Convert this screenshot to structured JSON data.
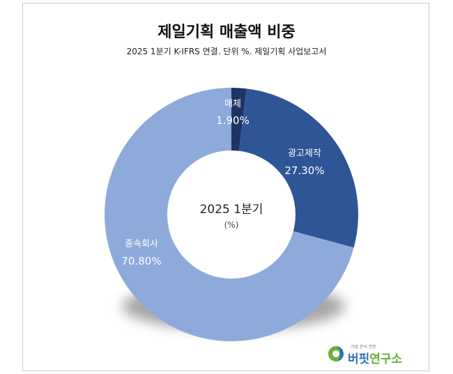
{
  "title": "제일기획 매출액 비중",
  "subtitle": "2025 1분기 K-IFRS 연결. 단위 %. 제일기획 사업보고서",
  "colors": {
    "slice_media": "#1e3463",
    "slice_adprod": "#2e5596",
    "slice_subsid": "#8eaadb",
    "label_dark_bg": "#ffffff",
    "center_text": "#222222"
  },
  "chart_data": {
    "type": "pie",
    "subtype": "donut",
    "center_label": "2025 1분기",
    "center_sublabel": "(%)",
    "slices": [
      {
        "label": "매체",
        "value": 1.9,
        "display": "1.90%"
      },
      {
        "label": "광고제작",
        "value": 27.3,
        "display": "27.30%"
      },
      {
        "label": "종속회사",
        "value": 70.8,
        "display": "70.80%"
      }
    ]
  },
  "logo": {
    "tagline": "기업 분석 전문",
    "name_part1": "버핏",
    "name_part2": "연구소"
  }
}
